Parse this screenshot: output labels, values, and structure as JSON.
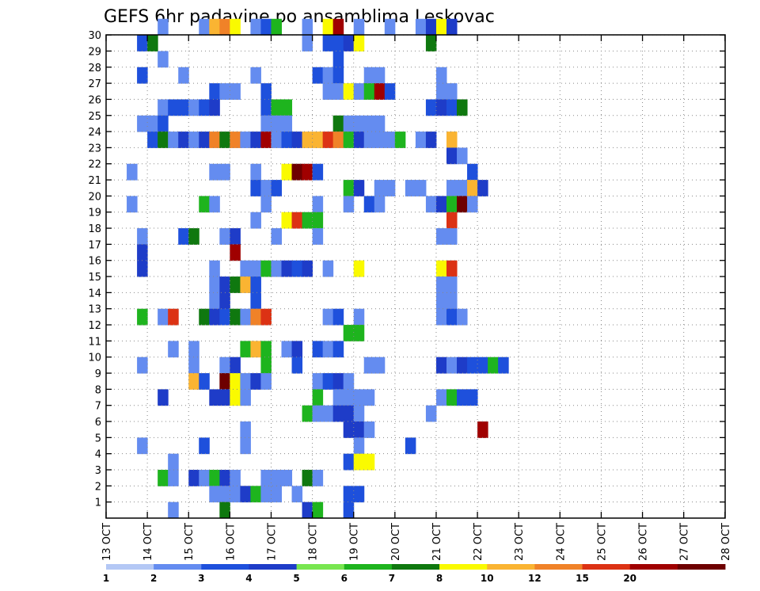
{
  "chart_data": {
    "type": "heatmap",
    "title": "GEFS 6hr padavine po ansamblima Leskovac",
    "y_ticks": [
      "1",
      "2",
      "3",
      "4",
      "5",
      "6",
      "7",
      "8",
      "9",
      "10",
      "11",
      "12",
      "13",
      "14",
      "15",
      "16",
      "17",
      "18",
      "19",
      "20",
      "21",
      "22",
      "23",
      "24",
      "25",
      "26",
      "27",
      "28",
      "29",
      "30"
    ],
    "x_ticks": [
      "13 OCT",
      "14 OCT",
      "15 OCT",
      "16 OCT",
      "17 OCT",
      "18 OCT",
      "19 OCT",
      "20 OCT",
      "21 OCT",
      "22 OCT",
      "23 OCT",
      "24 OCT",
      "25 OCT",
      "26 OCT",
      "27 OCT",
      "28 OCT"
    ],
    "color_scale": {
      "labels": [
        "1",
        "2",
        "3",
        "4",
        "5",
        "6",
        "7",
        "8",
        "10",
        "12",
        "15",
        "20"
      ],
      "colors": [
        "#b4c8f5",
        "#648cf0",
        "#1e50dc",
        "#1e3cc8",
        "#78e650",
        "#1eb41e",
        "#0f780f",
        "#fafa00",
        "#fab432",
        "#f08228",
        "#dc3214",
        "#a00000",
        "#6e0000"
      ]
    },
    "cells": [
      [
        30,
        5,
        1
      ],
      [
        30,
        9,
        1
      ],
      [
        30,
        10,
        8
      ],
      [
        30,
        11,
        9
      ],
      [
        30,
        12,
        7
      ],
      [
        30,
        14,
        1
      ],
      [
        30,
        15,
        2
      ],
      [
        30,
        16,
        5
      ],
      [
        30,
        19,
        1
      ],
      [
        30,
        21,
        7
      ],
      [
        30,
        22,
        11
      ],
      [
        30,
        24,
        1
      ],
      [
        30,
        27,
        1
      ],
      [
        30,
        30,
        1
      ],
      [
        30,
        31,
        3
      ],
      [
        30,
        32,
        7
      ],
      [
        30,
        33,
        3
      ],
      [
        29,
        3,
        2
      ],
      [
        29,
        4,
        6
      ],
      [
        29,
        19,
        1
      ],
      [
        29,
        21,
        2
      ],
      [
        29,
        22,
        2
      ],
      [
        29,
        23,
        3
      ],
      [
        29,
        24,
        7
      ],
      [
        29,
        31,
        6
      ],
      [
        28,
        5,
        1
      ],
      [
        28,
        22,
        2
      ],
      [
        27,
        3,
        2
      ],
      [
        27,
        7,
        1
      ],
      [
        27,
        14,
        1
      ],
      [
        27,
        20,
        2
      ],
      [
        27,
        21,
        1
      ],
      [
        27,
        22,
        2
      ],
      [
        27,
        25,
        1
      ],
      [
        27,
        26,
        1
      ],
      [
        27,
        32,
        1
      ],
      [
        26,
        10,
        2
      ],
      [
        26,
        11,
        1
      ],
      [
        26,
        12,
        1
      ],
      [
        26,
        15,
        2
      ],
      [
        26,
        21,
        1
      ],
      [
        26,
        22,
        1
      ],
      [
        26,
        23,
        7
      ],
      [
        26,
        24,
        1
      ],
      [
        26,
        25,
        5
      ],
      [
        26,
        26,
        11
      ],
      [
        26,
        27,
        2
      ],
      [
        26,
        32,
        1
      ],
      [
        26,
        33,
        1
      ],
      [
        25,
        5,
        1
      ],
      [
        25,
        6,
        2
      ],
      [
        25,
        7,
        2
      ],
      [
        25,
        8,
        1
      ],
      [
        25,
        9,
        2
      ],
      [
        25,
        10,
        3
      ],
      [
        25,
        15,
        2
      ],
      [
        25,
        16,
        5
      ],
      [
        25,
        17,
        5
      ],
      [
        25,
        31,
        2
      ],
      [
        25,
        32,
        3
      ],
      [
        25,
        33,
        2
      ],
      [
        25,
        34,
        6
      ],
      [
        24,
        3,
        1
      ],
      [
        24,
        4,
        1
      ],
      [
        24,
        5,
        2
      ],
      [
        24,
        15,
        1
      ],
      [
        24,
        16,
        1
      ],
      [
        24,
        17,
        1
      ],
      [
        24,
        22,
        6
      ],
      [
        24,
        23,
        1
      ],
      [
        24,
        24,
        1
      ],
      [
        24,
        25,
        1
      ],
      [
        24,
        26,
        1
      ],
      [
        23,
        4,
        2
      ],
      [
        23,
        5,
        6
      ],
      [
        23,
        6,
        1
      ],
      [
        23,
        7,
        3
      ],
      [
        23,
        8,
        1
      ],
      [
        23,
        9,
        3
      ],
      [
        23,
        10,
        9
      ],
      [
        23,
        11,
        6
      ],
      [
        23,
        12,
        9
      ],
      [
        23,
        13,
        1
      ],
      [
        23,
        14,
        3
      ],
      [
        23,
        15,
        11
      ],
      [
        23,
        16,
        1
      ],
      [
        23,
        17,
        2
      ],
      [
        23,
        18,
        3
      ],
      [
        23,
        19,
        8
      ],
      [
        23,
        20,
        8
      ],
      [
        23,
        21,
        10
      ],
      [
        23,
        22,
        9
      ],
      [
        23,
        23,
        5
      ],
      [
        23,
        24,
        3
      ],
      [
        23,
        25,
        1
      ],
      [
        23,
        26,
        1
      ],
      [
        23,
        27,
        1
      ],
      [
        23,
        28,
        5
      ],
      [
        23,
        30,
        1
      ],
      [
        23,
        31,
        3
      ],
      [
        23,
        33,
        8
      ],
      [
        22,
        33,
        3
      ],
      [
        22,
        34,
        1
      ],
      [
        21,
        2,
        1
      ],
      [
        21,
        10,
        1
      ],
      [
        21,
        11,
        1
      ],
      [
        21,
        14,
        1
      ],
      [
        21,
        17,
        7
      ],
      [
        21,
        18,
        12
      ],
      [
        21,
        19,
        11
      ],
      [
        21,
        20,
        2
      ],
      [
        21,
        35,
        2
      ],
      [
        20,
        14,
        2
      ],
      [
        20,
        15,
        1
      ],
      [
        20,
        16,
        2
      ],
      [
        20,
        23,
        5
      ],
      [
        20,
        24,
        3
      ],
      [
        20,
        26,
        1
      ],
      [
        20,
        27,
        1
      ],
      [
        20,
        29,
        1
      ],
      [
        20,
        30,
        1
      ],
      [
        20,
        33,
        1
      ],
      [
        20,
        34,
        1
      ],
      [
        20,
        35,
        8
      ],
      [
        20,
        36,
        3
      ],
      [
        19,
        2,
        1
      ],
      [
        19,
        9,
        5
      ],
      [
        19,
        10,
        1
      ],
      [
        19,
        15,
        1
      ],
      [
        19,
        20,
        1
      ],
      [
        19,
        23,
        1
      ],
      [
        19,
        25,
        2
      ],
      [
        19,
        26,
        1
      ],
      [
        19,
        31,
        1
      ],
      [
        19,
        32,
        3
      ],
      [
        19,
        33,
        5
      ],
      [
        19,
        34,
        12
      ],
      [
        19,
        35,
        1
      ],
      [
        18,
        14,
        1
      ],
      [
        18,
        17,
        7
      ],
      [
        18,
        18,
        10
      ],
      [
        18,
        19,
        5
      ],
      [
        18,
        20,
        5
      ],
      [
        18,
        33,
        10
      ],
      [
        17,
        3,
        1
      ],
      [
        17,
        7,
        2
      ],
      [
        17,
        8,
        6
      ],
      [
        17,
        11,
        1
      ],
      [
        17,
        12,
        3
      ],
      [
        17,
        16,
        1
      ],
      [
        17,
        20,
        1
      ],
      [
        17,
        32,
        1
      ],
      [
        17,
        33,
        1
      ],
      [
        16,
        3,
        3
      ],
      [
        16,
        12,
        11
      ],
      [
        15,
        3,
        3
      ],
      [
        15,
        10,
        1
      ],
      [
        15,
        13,
        1
      ],
      [
        15,
        14,
        1
      ],
      [
        15,
        15,
        5
      ],
      [
        15,
        16,
        1
      ],
      [
        15,
        17,
        3
      ],
      [
        15,
        18,
        2
      ],
      [
        15,
        19,
        3
      ],
      [
        15,
        21,
        1
      ],
      [
        15,
        24,
        7
      ],
      [
        15,
        32,
        7
      ],
      [
        15,
        33,
        10
      ],
      [
        14,
        10,
        1
      ],
      [
        14,
        11,
        3
      ],
      [
        14,
        12,
        6
      ],
      [
        14,
        13,
        8
      ],
      [
        14,
        14,
        2
      ],
      [
        14,
        32,
        1
      ],
      [
        14,
        33,
        1
      ],
      [
        13,
        10,
        1
      ],
      [
        13,
        11,
        3
      ],
      [
        13,
        14,
        2
      ],
      [
        13,
        32,
        1
      ],
      [
        13,
        33,
        1
      ],
      [
        12,
        3,
        5
      ],
      [
        12,
        5,
        1
      ],
      [
        12,
        6,
        10
      ],
      [
        12,
        9,
        6
      ],
      [
        12,
        10,
        3
      ],
      [
        12,
        11,
        2
      ],
      [
        12,
        12,
        6
      ],
      [
        12,
        13,
        1
      ],
      [
        12,
        14,
        9
      ],
      [
        12,
        15,
        10
      ],
      [
        12,
        21,
        1
      ],
      [
        12,
        22,
        2
      ],
      [
        12,
        24,
        1
      ],
      [
        12,
        32,
        1
      ],
      [
        12,
        33,
        2
      ],
      [
        12,
        34,
        1
      ],
      [
        11,
        23,
        5
      ],
      [
        11,
        24,
        5
      ],
      [
        10,
        6,
        1
      ],
      [
        10,
        8,
        1
      ],
      [
        10,
        13,
        5
      ],
      [
        10,
        14,
        8
      ],
      [
        10,
        15,
        5
      ],
      [
        10,
        17,
        1
      ],
      [
        10,
        18,
        3
      ],
      [
        10,
        20,
        2
      ],
      [
        10,
        21,
        1
      ],
      [
        10,
        22,
        2
      ],
      [
        9,
        3,
        1
      ],
      [
        9,
        8,
        1
      ],
      [
        9,
        11,
        1
      ],
      [
        9,
        12,
        3
      ],
      [
        9,
        15,
        5
      ],
      [
        9,
        18,
        2
      ],
      [
        9,
        25,
        1
      ],
      [
        9,
        26,
        1
      ],
      [
        9,
        32,
        3
      ],
      [
        9,
        33,
        1
      ],
      [
        9,
        34,
        3
      ],
      [
        9,
        35,
        2
      ],
      [
        9,
        36,
        2
      ],
      [
        9,
        37,
        5
      ],
      [
        9,
        38,
        2
      ],
      [
        8,
        8,
        8
      ],
      [
        8,
        9,
        2
      ],
      [
        8,
        11,
        12
      ],
      [
        8,
        12,
        7
      ],
      [
        8,
        13,
        1
      ],
      [
        8,
        14,
        3
      ],
      [
        8,
        15,
        1
      ],
      [
        8,
        20,
        1
      ],
      [
        8,
        21,
        2
      ],
      [
        8,
        22,
        3
      ],
      [
        8,
        23,
        1
      ],
      [
        7,
        5,
        3
      ],
      [
        7,
        10,
        3
      ],
      [
        7,
        11,
        3
      ],
      [
        7,
        12,
        7
      ],
      [
        7,
        13,
        1
      ],
      [
        7,
        20,
        5
      ],
      [
        7,
        22,
        1
      ],
      [
        7,
        23,
        1
      ],
      [
        7,
        24,
        1
      ],
      [
        7,
        25,
        1
      ],
      [
        7,
        32,
        1
      ],
      [
        7,
        33,
        5
      ],
      [
        7,
        34,
        2
      ],
      [
        7,
        35,
        2
      ],
      [
        6,
        19,
        5
      ],
      [
        6,
        20,
        1
      ],
      [
        6,
        21,
        1
      ],
      [
        6,
        22,
        3
      ],
      [
        6,
        23,
        3
      ],
      [
        6,
        24,
        1
      ],
      [
        6,
        31,
        1
      ],
      [
        5,
        13,
        1
      ],
      [
        5,
        23,
        3
      ],
      [
        5,
        24,
        3
      ],
      [
        5,
        25,
        1
      ],
      [
        5,
        36,
        11
      ],
      [
        4,
        3,
        1
      ],
      [
        4,
        9,
        2
      ],
      [
        4,
        13,
        1
      ],
      [
        4,
        24,
        1
      ],
      [
        4,
        29,
        2
      ],
      [
        3,
        6,
        1
      ],
      [
        3,
        23,
        2
      ],
      [
        3,
        24,
        7
      ],
      [
        3,
        25,
        7
      ],
      [
        2,
        5,
        5
      ],
      [
        2,
        6,
        1
      ],
      [
        2,
        8,
        3
      ],
      [
        2,
        9,
        1
      ],
      [
        2,
        10,
        5
      ],
      [
        2,
        11,
        3
      ],
      [
        2,
        12,
        1
      ],
      [
        2,
        15,
        1
      ],
      [
        2,
        16,
        1
      ],
      [
        2,
        17,
        1
      ],
      [
        2,
        19,
        6
      ],
      [
        2,
        20,
        1
      ],
      [
        1,
        10,
        1
      ],
      [
        1,
        11,
        1
      ],
      [
        1,
        12,
        1
      ],
      [
        1,
        13,
        3
      ],
      [
        1,
        14,
        5
      ],
      [
        1,
        15,
        1
      ],
      [
        1,
        16,
        1
      ],
      [
        1,
        18,
        1
      ],
      [
        1,
        23,
        2
      ],
      [
        1,
        24,
        2
      ],
      [
        0,
        6,
        1
      ],
      [
        0,
        11,
        6
      ],
      [
        0,
        19,
        3
      ],
      [
        0,
        20,
        5
      ],
      [
        0,
        23,
        2
      ]
    ]
  }
}
